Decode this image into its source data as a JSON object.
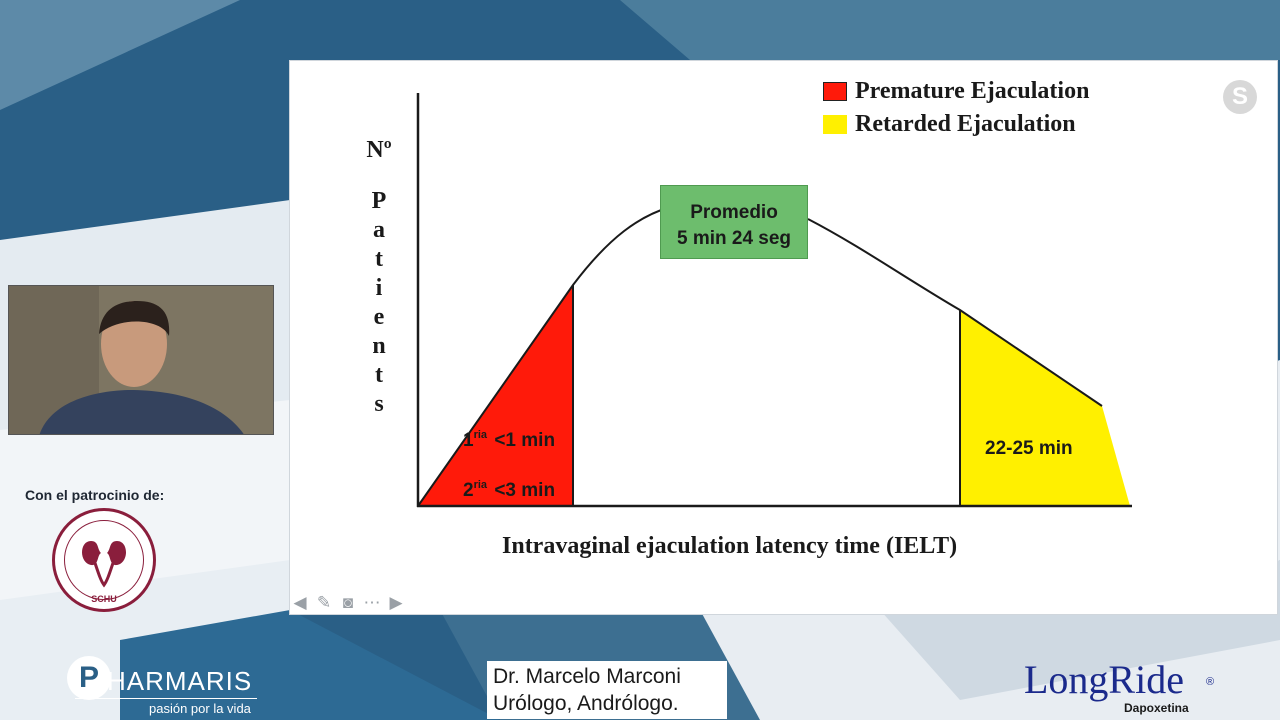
{
  "slide": {
    "legend": {
      "premature": "Premature Ejaculation",
      "retarded": "Retarded Ejaculation"
    },
    "y_axis_top": "Nº",
    "y_axis_letters": [
      "P",
      "a",
      "t",
      "i",
      "e",
      "n",
      "t",
      "s"
    ],
    "x_axis_label": "Intravaginal ejaculation latency time (IELT)",
    "promedio_line1": "Promedio",
    "promedio_line2": "5 min 24 seg",
    "red_label_1_sup": "ria",
    "red_label_1_num": "1",
    "red_label_1_text": "<1 min",
    "red_label_2_sup": "ria",
    "red_label_2_num": "2",
    "red_label_2_text": "<3 min",
    "yellow_label": "22-25 min",
    "colors": {
      "premature": "#ff1a0a",
      "retarded": "#fff000",
      "promedio": "#6dbd6d"
    },
    "nav_icons": [
      "arrow-left-icon",
      "pen-icon",
      "screen-icon",
      "more-icon",
      "arrow-right-icon"
    ]
  },
  "sidebar": {
    "sponsor_text": "Con el patrocinio de:",
    "schu_ring_text": "SOCIEDAD CHILENA DE UROLOGIA",
    "schu_abbr": "SCHU"
  },
  "pharmaris": {
    "letter": "P",
    "name": "HARMARIS",
    "slogan": "pasión por la vida"
  },
  "speaker": {
    "name": "Dr. Marcelo Marconi",
    "title": "Urólogo, Andrólogo."
  },
  "longride": {
    "name": "LongRide",
    "reg": "®",
    "sub": "Dapoxetina"
  }
}
